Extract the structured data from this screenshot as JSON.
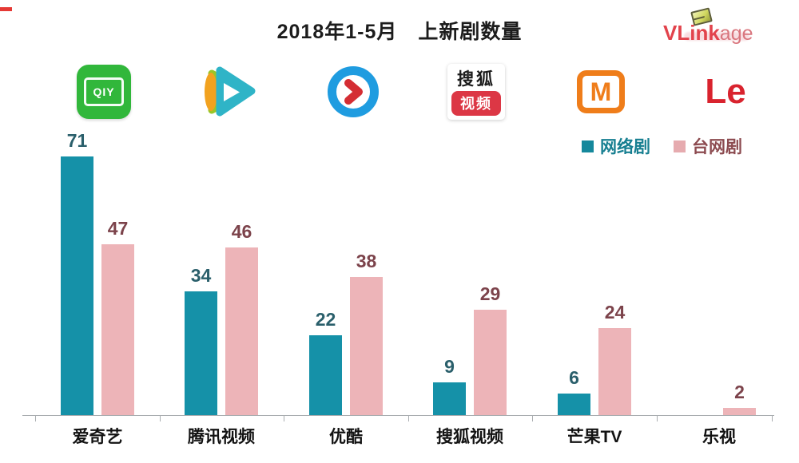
{
  "header": {
    "title": "2018年1-5月　上新剧数量",
    "brand": {
      "part1": "VLink",
      "part2": "age"
    }
  },
  "legend": [
    {
      "label": "网络剧",
      "swatch_color": "#15889c",
      "text_color": "#177f91"
    },
    {
      "label": "台网剧",
      "swatch_color": "#e6abaf",
      "text_color": "#8c4b50"
    }
  ],
  "platform_logos": {
    "iqiyi": {
      "text": "QIY"
    },
    "sohu": {
      "line1": "搜狐",
      "line2": "视频"
    },
    "mango": {
      "letter": "M"
    },
    "letv": {
      "text": "Le"
    }
  },
  "chart_data": {
    "type": "bar",
    "title": "2018年1-5月 上新剧数量",
    "categories": [
      "爱奇艺",
      "腾讯视频",
      "优酷",
      "搜狐视频",
      "芒果TV",
      "乐视"
    ],
    "series": [
      {
        "name": "网络剧",
        "color": "#1591a8",
        "label_color": "#2a5f6b",
        "values": [
          71,
          34,
          22,
          9,
          6,
          null
        ]
      },
      {
        "name": "台网剧",
        "color": "#edb4b8",
        "label_color": "#7c434b",
        "values": [
          47,
          46,
          38,
          29,
          24,
          2
        ]
      }
    ],
    "ylim": [
      0,
      80
    ],
    "grid": false,
    "legend_position": "top-right",
    "xlabel": "",
    "ylabel": ""
  }
}
